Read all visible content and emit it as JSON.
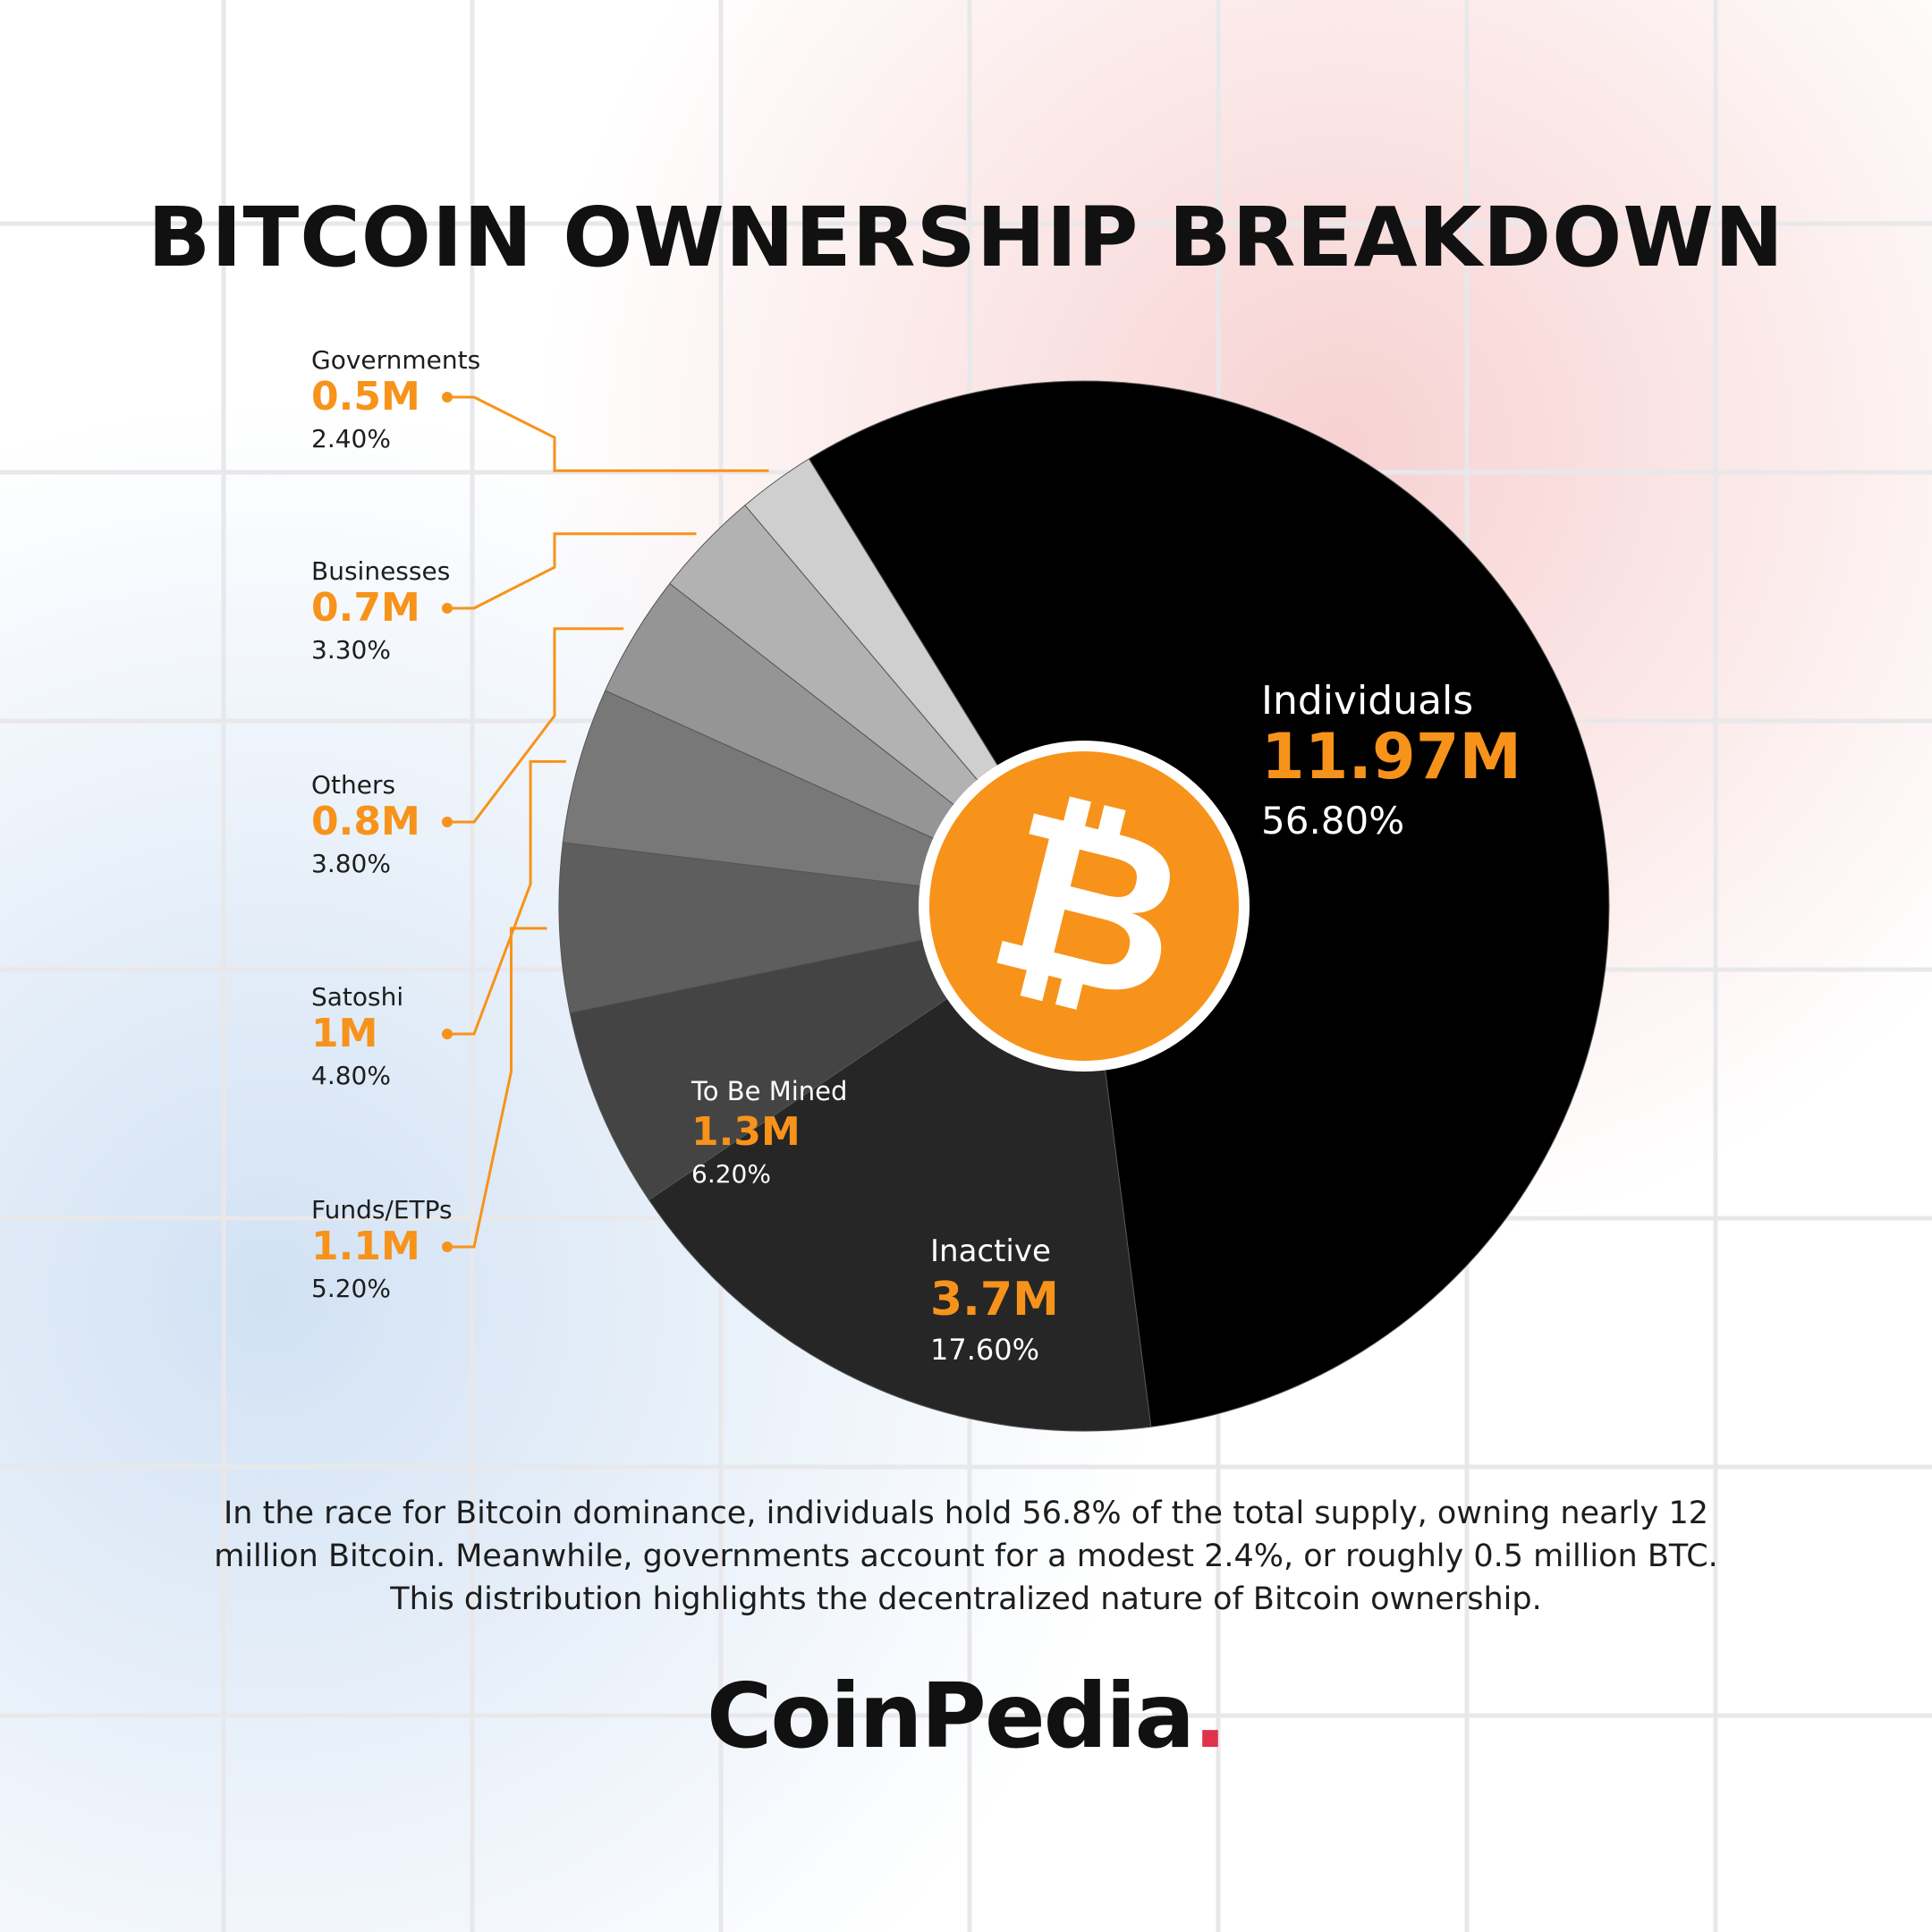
{
  "colors": {
    "accent": "#f7931a",
    "logo_dot": "#e0334a",
    "grid": "#e9e9ec"
  },
  "header": {
    "title": "BITCOIN OWNERSHIP BREAKDOWN"
  },
  "chart_data": {
    "type": "pie",
    "title": "BITCOIN OWNERSHIP BREAKDOWN",
    "center_icon": "bitcoin-icon",
    "slices": [
      {
        "label": "Individuals",
        "value": 11.97,
        "value_label": "11.97M",
        "percent": 56.8,
        "percent_label": "56.80%",
        "color": "#000000",
        "label_style": "inside"
      },
      {
        "label": "Inactive",
        "value": 3.7,
        "value_label": "3.7M",
        "percent": 17.6,
        "percent_label": "17.60%",
        "color": "#262626",
        "label_style": "inside"
      },
      {
        "label": "To Be Mined",
        "value": 1.3,
        "value_label": "1.3M",
        "percent": 6.2,
        "percent_label": "6.20%",
        "color": "#444444",
        "label_style": "inside"
      },
      {
        "label": "Funds/ETPs",
        "value": 1.1,
        "value_label": "1.1M",
        "percent": 5.2,
        "percent_label": "5.20%",
        "color": "#5e5e5e",
        "label_style": "callout"
      },
      {
        "label": "Satoshi",
        "value": 1,
        "value_label": "1M",
        "percent": 4.8,
        "percent_label": "4.80%",
        "color": "#787878",
        "label_style": "callout"
      },
      {
        "label": "Others",
        "value": 0.8,
        "value_label": "0.8M",
        "percent": 3.8,
        "percent_label": "3.80%",
        "color": "#959595",
        "label_style": "callout"
      },
      {
        "label": "Businesses",
        "value": 0.7,
        "value_label": "0.7M",
        "percent": 3.3,
        "percent_label": "3.30%",
        "color": "#b2b2b2",
        "label_style": "callout"
      },
      {
        "label": "Governments",
        "value": 0.5,
        "value_label": "0.5M",
        "percent": 2.4,
        "percent_label": "2.40%",
        "color": "#cfcfcf",
        "label_style": "callout"
      }
    ]
  },
  "caption": {
    "line1": "In the race for Bitcoin dominance, individuals hold 56.8% of the total supply, owning nearly 12",
    "line2": "million Bitcoin. Meanwhile, governments account for a modest 2.4%, or roughly 0.5 million BTC.",
    "line3": "This distribution highlights the decentralized nature of Bitcoin ownership."
  },
  "logo": {
    "text": "CoinPedia",
    "dot": "."
  }
}
